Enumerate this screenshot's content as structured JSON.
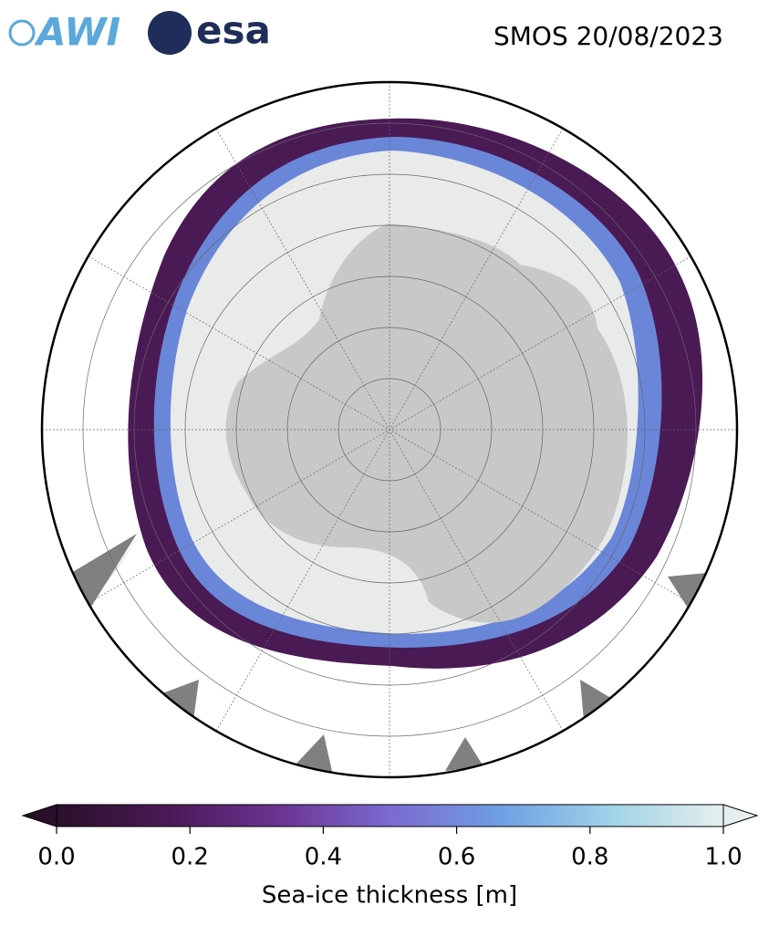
{
  "header": {
    "logos": [
      "AWI",
      "esa"
    ],
    "title": "SMOS 20/08/2023"
  },
  "colorbar": {
    "label": "Sea-ice thickness [m]",
    "lim": [
      0,
      1
    ],
    "ticks": [
      {
        "value": 0,
        "label": "0.0"
      },
      {
        "value": 0.2,
        "label": "0.2"
      },
      {
        "value": 0.4,
        "label": "0.4"
      },
      {
        "value": 0.6,
        "label": "0.6"
      },
      {
        "value": 0.8,
        "label": "0.8"
      },
      {
        "value": 1,
        "label": "1.0"
      }
    ],
    "colors": [
      "#2a0f2a",
      "#4a1a55",
      "#6a3493",
      "#7c6ad0",
      "#6f9fe4",
      "#9fd3e6",
      "#e6efee"
    ]
  }
}
